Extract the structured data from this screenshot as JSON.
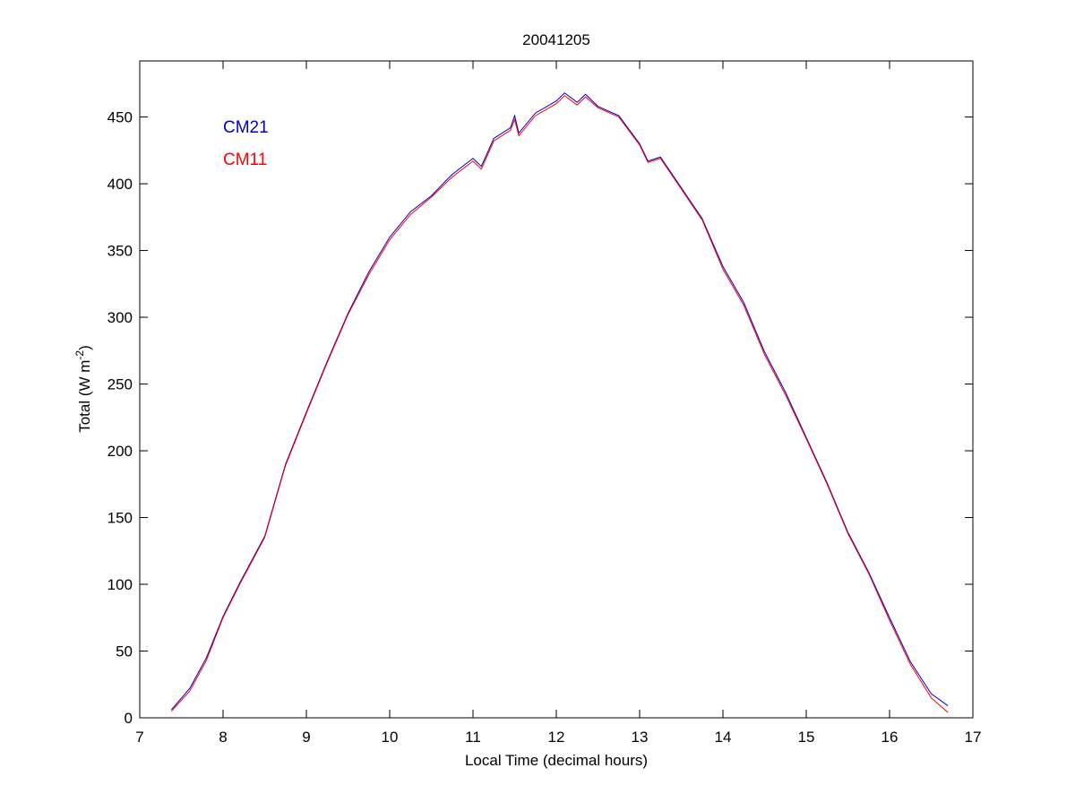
{
  "chart_data": {
    "type": "line",
    "title": "20041205",
    "xlabel": "Local Time (decimal hours)",
    "ylabel": [
      "Total (W m",
      "-2",
      ")"
    ],
    "xlim": [
      7,
      17
    ],
    "xticks": [
      7,
      8,
      9,
      10,
      11,
      12,
      13,
      14,
      15,
      16,
      17
    ],
    "ylim": [
      0,
      492
    ],
    "yticks": [
      0,
      50,
      100,
      150,
      200,
      250,
      300,
      350,
      400,
      450
    ],
    "legend": "upper left",
    "x": [
      7.38,
      7.6,
      7.8,
      8.0,
      8.2,
      8.5,
      8.75,
      9.0,
      9.25,
      9.5,
      9.75,
      10.0,
      10.25,
      10.5,
      10.75,
      11.0,
      11.1,
      11.25,
      11.45,
      11.5,
      11.55,
      11.75,
      12.0,
      12.1,
      12.25,
      12.35,
      12.5,
      12.75,
      13.0,
      13.1,
      13.25,
      13.5,
      13.75,
      14.0,
      14.25,
      14.5,
      14.75,
      15.0,
      15.25,
      15.5,
      15.75,
      16.0,
      16.25,
      16.5,
      16.7
    ],
    "series": [
      {
        "name": "CM21",
        "color": "#0000cc",
        "values": [
          6,
          22,
          45,
          76,
          101,
          136,
          190,
          229,
          267,
          303,
          334,
          360,
          379,
          391,
          407,
          419,
          413,
          434,
          442,
          451,
          438,
          453,
          462,
          468,
          461,
          467,
          458,
          451,
          430,
          417,
          420,
          397,
          374,
          338,
          311,
          274,
          244,
          210,
          176,
          139,
          109,
          75,
          42,
          18,
          9
        ]
      },
      {
        "name": "CM11",
        "color": "#ff0000",
        "values": [
          5,
          20,
          43,
          75,
          100,
          135,
          189,
          228,
          266,
          302,
          332,
          358,
          377,
          390,
          405,
          417,
          411,
          432,
          440,
          448,
          436,
          451,
          460,
          466,
          459,
          465,
          457,
          450,
          429,
          416,
          419,
          396,
          373,
          336,
          309,
          272,
          242,
          209,
          175,
          138,
          108,
          73,
          40,
          15,
          4
        ]
      }
    ]
  }
}
